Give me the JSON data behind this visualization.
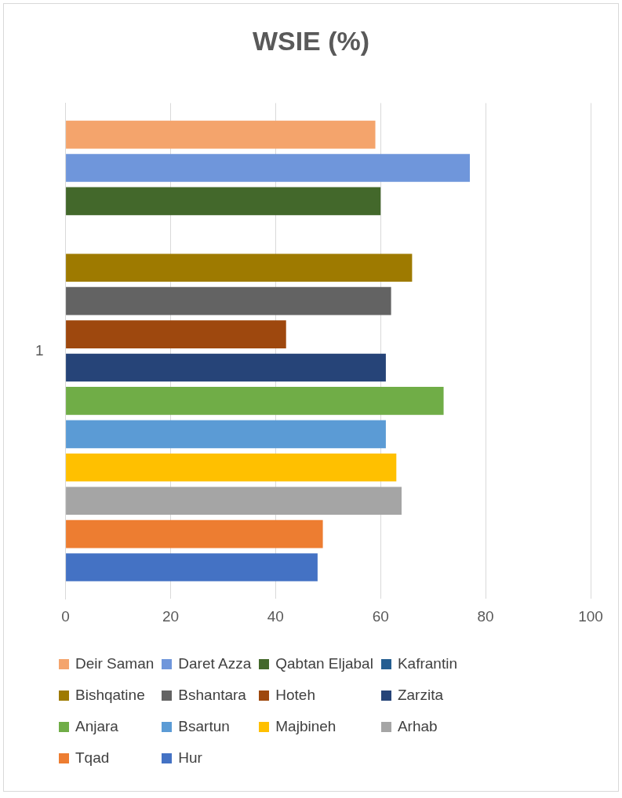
{
  "chart_data": {
    "type": "bar",
    "title": "WSIE (%)",
    "orientation": "horizontal",
    "categories": [
      "1"
    ],
    "series": [
      {
        "name": "Deir Saman",
        "color": "#f4a46c",
        "values": [
          59
        ]
      },
      {
        "name": "Daret Azza",
        "color": "#6f96db",
        "values": [
          77
        ]
      },
      {
        "name": "Qabtan Eljabal",
        "color": "#43682b",
        "values": [
          60
        ]
      },
      {
        "name": "Kafrantin",
        "color": "#255e91",
        "values": [
          null
        ]
      },
      {
        "name": "Bishqatine",
        "color": "#9e7a00",
        "values": [
          66
        ]
      },
      {
        "name": "Bshantara",
        "color": "#636363",
        "values": [
          62
        ]
      },
      {
        "name": "Hoteh",
        "color": "#9e480e",
        "values": [
          42
        ]
      },
      {
        "name": "Zarzita",
        "color": "#264478",
        "values": [
          61
        ]
      },
      {
        "name": "Anjara",
        "color": "#70ad47",
        "values": [
          72
        ]
      },
      {
        "name": "Bsartun",
        "color": "#5b9bd5",
        "values": [
          61
        ]
      },
      {
        "name": "Majbineh",
        "color": "#ffc000",
        "values": [
          63
        ]
      },
      {
        "name": "Arhab",
        "color": "#a5a5a5",
        "values": [
          64
        ]
      },
      {
        "name": "Tqad",
        "color": "#ed7d31",
        "values": [
          49
        ]
      },
      {
        "name": "Hur",
        "color": "#4472c4",
        "values": [
          48
        ]
      }
    ],
    "xlim": [
      0,
      100
    ],
    "xticks": [
      0,
      20,
      40,
      60,
      80,
      100
    ],
    "grid": "x",
    "legend": "bottom"
  }
}
